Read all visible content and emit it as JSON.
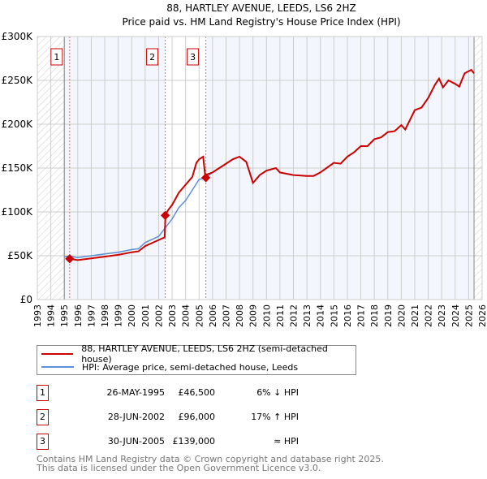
{
  "chart_data": {
    "type": "line",
    "title": "88, HARTLEY AVENUE, LEEDS, LS6 2HZ",
    "subtitle": "Price paid vs. HM Land Registry's House Price Index (HPI)",
    "xlim": [
      1993,
      2026
    ],
    "ylim": [
      0,
      300000
    ],
    "y_ticks": [
      {
        "v": 0,
        "label": "£0"
      },
      {
        "v": 50000,
        "label": "£50K"
      },
      {
        "v": 100000,
        "label": "£100K"
      },
      {
        "v": 150000,
        "label": "£150K"
      },
      {
        "v": 200000,
        "label": "£200K"
      },
      {
        "v": 250000,
        "label": "£250K"
      },
      {
        "v": 300000,
        "label": "£300K"
      }
    ],
    "x_ticks": [
      "1993",
      "1994",
      "1995",
      "1996",
      "1997",
      "1998",
      "1999",
      "2000",
      "2001",
      "2002",
      "2003",
      "2004",
      "2005",
      "2006",
      "2007",
      "2008",
      "2009",
      "2010",
      "2011",
      "2012",
      "2013",
      "2014",
      "2015",
      "2016",
      "2017",
      "2018",
      "2019",
      "2020",
      "2021",
      "2022",
      "2023",
      "2024",
      "2025",
      "2026"
    ],
    "data_range": [
      1995,
      2025.4
    ],
    "grid": true,
    "series": [
      {
        "name": "88, HARTLEY AVENUE, LEEDS, LS6 2HZ (semi-detached house)",
        "color": "#cc0000",
        "x": [
          1995.4,
          1996,
          1997,
          1998,
          1999,
          2000,
          2000.5,
          2001,
          2002,
          2002.45,
          2002.5,
          2002.7,
          2003,
          2003.5,
          2004,
          2004.5,
          2004.8,
          2005,
          2005.3,
          2005.45,
          2006,
          2007,
          2007.5,
          2008,
          2008.5,
          2009,
          2009.5,
          2010,
          2010.7,
          2011,
          2012,
          2013,
          2013.5,
          2014,
          2015,
          2015.5,
          2016,
          2016.5,
          2017,
          2017.5,
          2018,
          2018.5,
          2019,
          2019.5,
          2020,
          2020.3,
          2021,
          2021.5,
          2022,
          2022.5,
          2022.8,
          2023.1,
          2023.5,
          2024,
          2024.3,
          2024.7,
          2025.2,
          2025.4
        ],
        "y": [
          46500,
          45000,
          47000,
          49000,
          51000,
          54000,
          55000,
          61000,
          68000,
          71000,
          96000,
          102000,
          108000,
          122000,
          131000,
          140000,
          156000,
          160000,
          163000,
          142000,
          145000,
          155000,
          160000,
          163000,
          157000,
          133000,
          142000,
          147000,
          150000,
          145000,
          142000,
          141000,
          141000,
          145000,
          156000,
          155000,
          163000,
          168000,
          175000,
          175000,
          183000,
          185000,
          191000,
          192000,
          199000,
          194000,
          216000,
          219000,
          230000,
          245000,
          252000,
          242000,
          250000,
          246000,
          243000,
          258000,
          262000,
          258000
        ]
      },
      {
        "name": "HPI: Average price, semi-detached house, Leeds",
        "color": "#5b8fd6",
        "x": [
          1995,
          1995.4,
          1996,
          1997,
          1998,
          1999,
          2000,
          2000.5,
          2001,
          2002,
          2002.5,
          2003,
          2003.5,
          2004,
          2004.5,
          2005,
          2005.5,
          2006,
          2007,
          2007.5,
          2008,
          2008.5,
          2009,
          2009.5,
          2010,
          2010.7,
          2011,
          2012,
          2013,
          2013.5,
          2014,
          2015,
          2015.5,
          2016,
          2016.5,
          2017,
          2017.5,
          2018,
          2018.5,
          2019,
          2019.5,
          2020,
          2020.3,
          2021,
          2021.5,
          2022,
          2022.5,
          2022.8,
          2023.1,
          2023.5,
          2024,
          2024.3,
          2024.7,
          2025.2,
          2025.4
        ],
        "y": [
          49000,
          49500,
          48000,
          50000,
          52000,
          54000,
          57000,
          58000,
          65000,
          72000,
          82000,
          92000,
          105000,
          113000,
          125000,
          137000,
          139000,
          145000,
          155000,
          160000,
          163000,
          157000,
          133000,
          142000,
          147000,
          150000,
          145000,
          142000,
          141000,
          141000,
          145000,
          156000,
          155000,
          163000,
          168000,
          175000,
          175000,
          183000,
          185000,
          191000,
          192000,
          199000,
          194000,
          216000,
          219000,
          230000,
          245000,
          252000,
          242000,
          250000,
          246000,
          243000,
          258000,
          262000,
          258000
        ]
      }
    ],
    "sales": [
      {
        "n": "1",
        "x": 1995.4,
        "date": "26-MAY-1995",
        "price": 46500,
        "price_label": "£46,500",
        "hpi": "6% ↓ HPI"
      },
      {
        "n": "2",
        "x": 2002.49,
        "date": "28-JUN-2002",
        "price": 96000,
        "price_label": "£96,000",
        "hpi": "17% ↑ HPI"
      },
      {
        "n": "3",
        "x": 2005.5,
        "date": "30-JUN-2005",
        "price": 139000,
        "price_label": "£139,000",
        "hpi": "≈ HPI"
      }
    ],
    "legend_position": "below"
  },
  "footer": {
    "line1": "Contains HM Land Registry data © Crown copyright and database right 2025.",
    "line2": "This data is licensed under the Open Government Licence v3.0."
  }
}
